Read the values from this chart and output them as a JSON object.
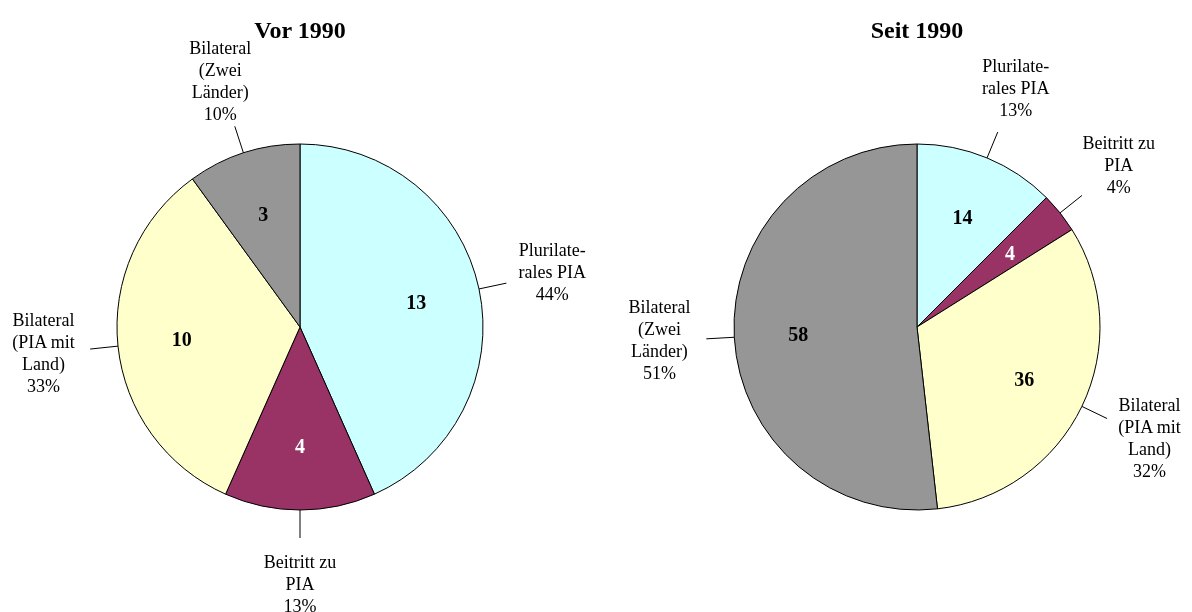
{
  "chart_data": [
    {
      "type": "pie",
      "title": "Vor 1990",
      "categories": [
        "Plurilate-\nrales PIA\n44%",
        "Beitritt zu\nPIA\n13%",
        "Bilateral\n(PIA mit\nLand)\n33%",
        "Bilateral\n(Zwei\nLänder)\n10%"
      ],
      "values": [
        13,
        4,
        10,
        3
      ],
      "colors": [
        "#ccffff",
        "#993366",
        "#ffffcc",
        "#969696"
      ],
      "data_labels": true
    },
    {
      "type": "pie",
      "title": "Seit 1990",
      "categories": [
        "Plurilate-\nrales PIA\n13%",
        "Beitritt zu\nPIA\n4%",
        "Bilateral\n(PIA mit\nLand)\n32%",
        "Bilateral\n(Zwei\nLänder)\n51%"
      ],
      "values": [
        14,
        4,
        36,
        58
      ],
      "colors": [
        "#ccffff",
        "#993366",
        "#ffffcc",
        "#969696"
      ],
      "data_labels": true
    }
  ]
}
